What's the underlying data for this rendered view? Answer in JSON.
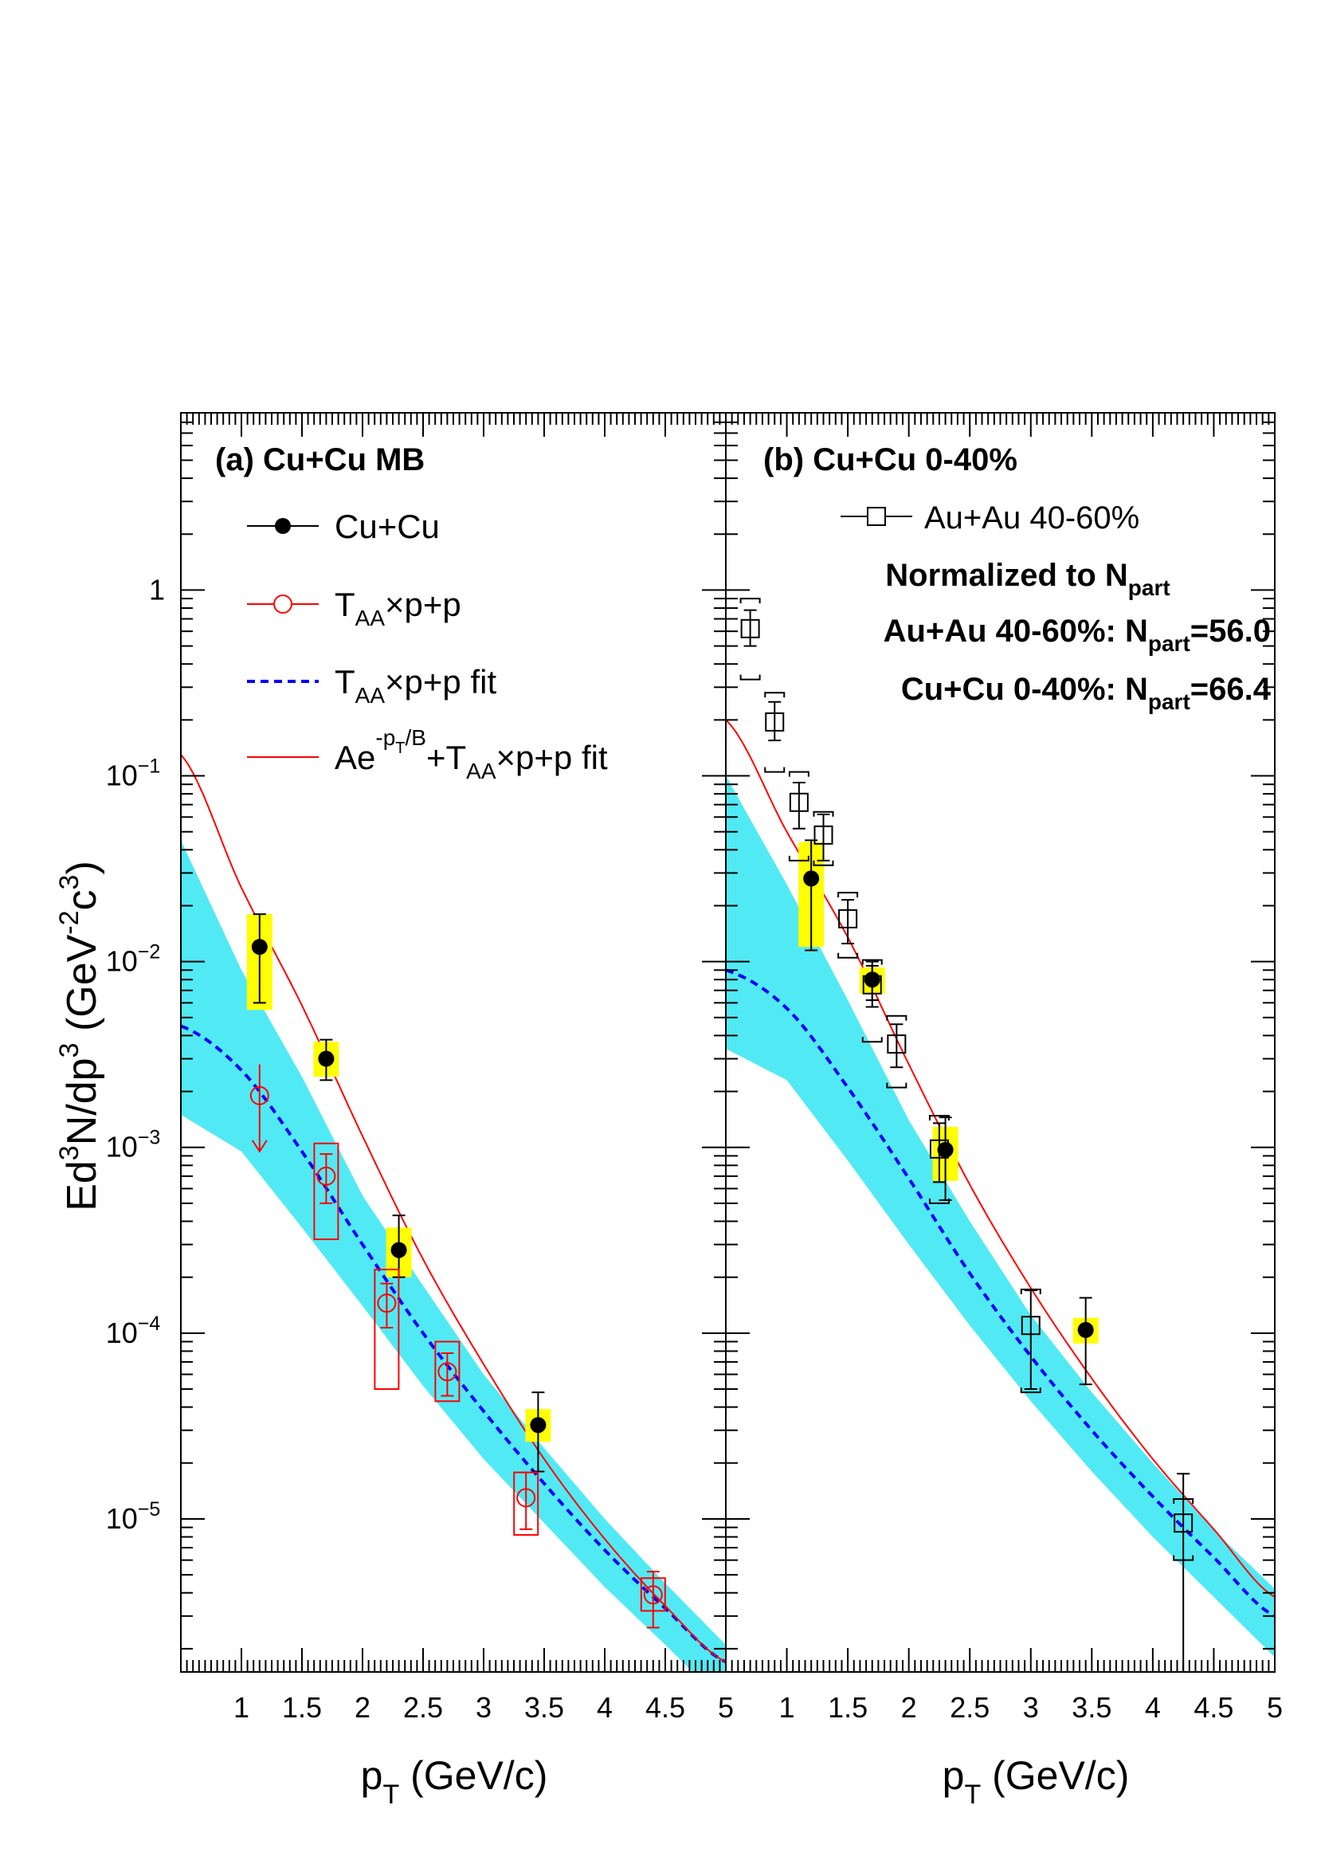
{
  "chart_data": [
    {
      "type": "scatter",
      "panel_label": "(a) Cu+Cu MB",
      "xlabel": "p",
      "xlabel_sub": "T",
      "xlabel_unit": "(GeV/c)",
      "ylabel": "Ed³N/dp³ (GeV⁻²c³)",
      "xlim": [
        0.5,
        5.0
      ],
      "ylim": [
        1.5e-06,
        9
      ],
      "yscale": "log",
      "x_ticks": [
        "1",
        "1.5",
        "2",
        "2.5",
        "3",
        "3.5",
        "4",
        "4.5",
        "5"
      ],
      "y_ticks": [
        {
          "base": "1",
          "exp": ""
        },
        {
          "base": "10",
          "exp": "−1"
        },
        {
          "base": "10",
          "exp": "−2"
        },
        {
          "base": "10",
          "exp": "−3"
        },
        {
          "base": "10",
          "exp": "−4"
        },
        {
          "base": "10",
          "exp": "−5"
        }
      ],
      "legend": {
        "position": "top-left",
        "entries": [
          {
            "label": "Cu+Cu",
            "marker": "filled-circle",
            "color": "#000000"
          },
          {
            "label": "T",
            "sub": "AA",
            "suffix": "×p+p",
            "marker": "open-circle",
            "color": "#ff0000"
          },
          {
            "label": "T",
            "sub": "AA",
            "suffix": "×p+p fit",
            "marker": "dashed-line",
            "color": "#0000ff"
          },
          {
            "label": "Ae",
            "sup": "-p",
            "supsub": "T",
            "sup2": "/B",
            "suffix2": "+T",
            "sub": "AA",
            "suffix": "×p+p fit",
            "marker": "solid-line",
            "color": "#ff0000"
          }
        ]
      },
      "series": [
        {
          "name": "Cu+Cu",
          "color": "#000000",
          "sys_color": "#ffff00",
          "points": [
            {
              "x": 1.15,
              "y": 0.012,
              "ylo": 0.006,
              "yhi": 0.018,
              "slo": 0.0055,
              "shi": 0.018
            },
            {
              "x": 1.7,
              "y": 0.003,
              "ylo": 0.0023,
              "yhi": 0.0038,
              "slo": 0.0024,
              "shi": 0.0037
            },
            {
              "x": 2.3,
              "y": 0.00028,
              "ylo": 0.0002,
              "yhi": 0.00043,
              "slo": 0.0002,
              "shi": 0.00037
            },
            {
              "x": 3.45,
              "y": 3.2e-05,
              "ylo": 1.8e-05,
              "yhi": 4.8e-05,
              "slo": 2.6e-05,
              "shi": 3.9e-05
            }
          ]
        },
        {
          "name": "T_AA×p+p",
          "color": "#ff0000",
          "points": [
            {
              "x": 1.15,
              "y": 0.0019,
              "upper_limit": true,
              "arrow_to": 0.00095,
              "yhi": 0.0028
            },
            {
              "x": 1.7,
              "y": 0.0007,
              "ylo": 0.0005,
              "yhi": 0.00092,
              "slo": 0.00032,
              "shi": 0.00105
            },
            {
              "x": 2.2,
              "y": 0.000145,
              "ylo": 0.000107,
              "yhi": 0.000185,
              "slo": 5e-05,
              "shi": 0.00022
            },
            {
              "x": 2.7,
              "y": 6.2e-05,
              "ylo": 4.6e-05,
              "yhi": 7.8e-05,
              "slo": 4.3e-05,
              "shi": 9e-05
            },
            {
              "x": 3.35,
              "y": 1.3e-05,
              "ylo": 8.8e-06,
              "yhi": 1.78e-05,
              "slo": 8.2e-06,
              "shi": 1.78e-05
            },
            {
              "x": 4.4,
              "y": 3.9e-06,
              "ylo": 2.6e-06,
              "yhi": 5.2e-06,
              "slo": 3.2e-06,
              "shi": 4.8e-06
            }
          ]
        }
      ],
      "band": {
        "color": "#33e6f2",
        "x": [
          0.5,
          1.0,
          1.5,
          2.0,
          2.5,
          3.0,
          3.5,
          4.0,
          4.5,
          5.0
        ],
        "upper": [
          0.045,
          0.009,
          0.0024,
          0.00055,
          0.00018,
          6e-05,
          2.4e-05,
          1e-05,
          4.5e-06,
          2.1e-06
        ],
        "lower": [
          0.0015,
          0.00095,
          0.00037,
          0.00014,
          5.2e-05,
          2.1e-05,
          9.5e-06,
          4.3e-06,
          2.1e-06,
          1e-06
        ]
      },
      "fit_pp": {
        "x": [
          0.5,
          1.0,
          1.5,
          2.0,
          2.5,
          3.0,
          3.5,
          4.0,
          4.5,
          5.0
        ],
        "y": [
          0.0045,
          0.0026,
          0.00095,
          0.0003,
          0.0001,
          3.8e-05,
          1.55e-05,
          6.8e-06,
          3.3e-06,
          1.7e-06
        ]
      },
      "fit_total": {
        "x": [
          0.5,
          1.0,
          1.5,
          2.0,
          2.5,
          3.0,
          3.5,
          4.0,
          4.5,
          5.0
        ],
        "y": [
          0.13,
          0.025,
          0.0058,
          0.00115,
          0.00025,
          6.8e-05,
          2.1e-05,
          7.8e-06,
          3.4e-06,
          1.7e-06
        ]
      }
    },
    {
      "type": "scatter",
      "panel_label": "(b) Cu+Cu 0-40%",
      "xlabel": "p",
      "xlabel_sub": "T",
      "xlabel_unit": "(GeV/c)",
      "xlim": [
        0.5,
        5.0
      ],
      "ylim": [
        1.5e-06,
        9
      ],
      "yscale": "log",
      "x_ticks": [
        "1",
        "1.5",
        "2",
        "2.5",
        "3",
        "3.5",
        "4",
        "4.5",
        "5"
      ],
      "legend": {
        "position": "top-right",
        "entries": [
          {
            "label": "Au+Au 40-60%",
            "marker": "open-square",
            "color": "#000000"
          }
        ]
      },
      "annotations": [
        {
          "text": "Normalized to N",
          "sub": "part",
          "after": ""
        },
        {
          "text": "Au+Au 40-60%: N",
          "sub": "part",
          "after": "=56.0"
        },
        {
          "text": "Cu+Cu   0-40%: N",
          "sub": "part",
          "after": "=66.4"
        }
      ],
      "series": [
        {
          "name": "Cu+Cu 0-40%",
          "color": "#000000",
          "sys_color": "#ffff00",
          "points": [
            {
              "x": 1.2,
              "y": 0.028,
              "ylo": 0.0115,
              "yhi": 0.045,
              "slo": 0.012,
              "shi": 0.044
            },
            {
              "x": 1.7,
              "y": 0.008,
              "ylo": 0.0062,
              "yhi": 0.01,
              "slo": 0.0067,
              "shi": 0.0093
            },
            {
              "x": 2.3,
              "y": 0.00097,
              "ylo": 0.00052,
              "yhi": 0.00145,
              "slo": 0.00066,
              "shi": 0.00129
            },
            {
              "x": 3.45,
              "y": 0.000104,
              "ylo": 5.3e-05,
              "yhi": 0.000155,
              "slo": 8.8e-05,
              "shi": 0.000121
            }
          ]
        },
        {
          "name": "Au+Au 40-60%",
          "color": "#000000",
          "points": [
            {
              "x": 0.7,
              "y": 0.62,
              "ylo": 0.5,
              "yhi": 0.78,
              "slo": 0.33,
              "shi": 0.9
            },
            {
              "x": 0.9,
              "y": 0.195,
              "ylo": 0.155,
              "yhi": 0.25,
              "slo": 0.105,
              "shi": 0.28
            },
            {
              "x": 1.1,
              "y": 0.072,
              "ylo": 0.052,
              "yhi": 0.092,
              "slo": 0.035,
              "shi": 0.105
            },
            {
              "x": 1.3,
              "y": 0.048,
              "ylo": 0.035,
              "yhi": 0.062,
              "slo": 0.033,
              "shi": 0.064
            },
            {
              "x": 1.5,
              "y": 0.017,
              "ylo": 0.0125,
              "yhi": 0.0215,
              "slo": 0.0105,
              "shi": 0.0235
            },
            {
              "x": 1.7,
              "y": 0.0075,
              "ylo": 0.0057,
              "yhi": 0.0095,
              "slo": 0.0037,
              "shi": 0.0102
            },
            {
              "x": 1.9,
              "y": 0.0036,
              "ylo": 0.0027,
              "yhi": 0.0046,
              "slo": 0.0021,
              "shi": 0.0051
            },
            {
              "x": 2.25,
              "y": 0.00098,
              "ylo": 0.00065,
              "yhi": 0.00135,
              "slo": 0.0005,
              "shi": 0.00148
            },
            {
              "x": 3.0,
              "y": 0.00011,
              "ylo": 5e-05,
              "yhi": 0.00017,
              "slo": 4.8e-05,
              "shi": 0.000172
            },
            {
              "x": 4.25,
              "y": 9.5e-06,
              "ylo": 1.5e-06,
              "yhi": 1.75e-05,
              "slo": 6e-06,
              "shi": 1.28e-05
            }
          ]
        }
      ],
      "band": {
        "color": "#33e6f2",
        "x": [
          0.5,
          1.0,
          1.5,
          2.0,
          2.5,
          3.0,
          3.5,
          4.0,
          4.5,
          5.0
        ],
        "upper": [
          0.1,
          0.026,
          0.0062,
          0.0014,
          0.0004,
          0.000125,
          4.8e-05,
          2e-05,
          8.7e-06,
          4.2e-06
        ],
        "lower": [
          0.0034,
          0.0023,
          0.00085,
          0.0003,
          0.00011,
          4.3e-05,
          1.8e-05,
          8e-06,
          3.8e-06,
          1.8e-06
        ]
      },
      "fit_pp": {
        "x": [
          0.5,
          1.0,
          1.5,
          2.0,
          2.5,
          3.0,
          3.5,
          4.0,
          4.5,
          5.0
        ],
        "y": [
          0.009,
          0.0056,
          0.0021,
          0.00068,
          0.00021,
          7.5e-05,
          3e-05,
          1.32e-05,
          6.2e-06,
          3e-06
        ]
      },
      "fit_total": {
        "x": [
          0.5,
          1.0,
          1.5,
          2.0,
          2.5,
          3.0,
          3.5,
          4.0,
          4.5,
          5.0
        ],
        "y": [
          0.2,
          0.05,
          0.0135,
          0.0028,
          0.00063,
          0.000175,
          5.7e-05,
          2.1e-05,
          8.8e-06,
          3.8e-06
        ]
      }
    }
  ]
}
